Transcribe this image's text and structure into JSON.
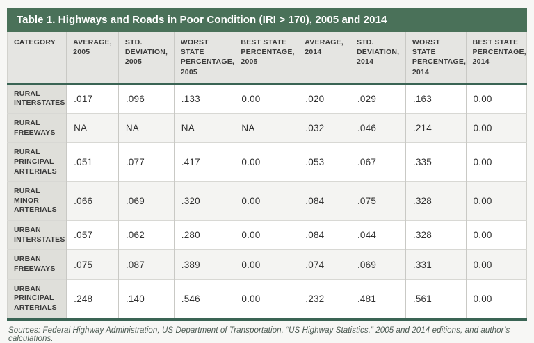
{
  "table": {
    "title": "Table 1. Highways and Roads in Poor Condition (IRI > 170), 2005 and 2014"
  },
  "chart_data": {
    "type": "table",
    "title": "Table 1. Highways and Roads in Poor Condition (IRI > 170), 2005 and 2014",
    "columns": [
      "CATEGORY",
      "AVERAGE, 2005",
      "STD. DEVIATION, 2005",
      "WORST STATE PERCENTAGE, 2005",
      "BEST STATE PERCENTAGE, 2005",
      "AVERAGE, 2014",
      "STD. DEVIATION, 2014",
      "WORST STATE PERCENTAGE, 2014",
      "BEST STATE PERCENTAGE, 2014"
    ],
    "rows": [
      {
        "category": "RURAL INTERSTATES",
        "values": [
          ".017",
          ".096",
          ".133",
          "0.00",
          ".020",
          ".029",
          ".163",
          "0.00"
        ]
      },
      {
        "category": "RURAL FREEWAYS",
        "values": [
          "NA",
          "NA",
          "NA",
          "NA",
          ".032",
          ".046",
          ".214",
          "0.00"
        ]
      },
      {
        "category": "RURAL PRINCIPAL ARTERIALS",
        "values": [
          ".051",
          ".077",
          ".417",
          "0.00",
          ".053",
          ".067",
          ".335",
          "0.00"
        ]
      },
      {
        "category": "RURAL MINOR ARTERIALS",
        "values": [
          ".066",
          ".069",
          ".320",
          "0.00",
          ".084",
          ".075",
          ".328",
          "0.00"
        ]
      },
      {
        "category": "URBAN INTERSTATES",
        "values": [
          ".057",
          ".062",
          ".280",
          "0.00",
          ".084",
          ".044",
          ".328",
          "0.00"
        ]
      },
      {
        "category": "URBAN FREEWAYS",
        "values": [
          ".075",
          ".087",
          ".389",
          "0.00",
          ".074",
          ".069",
          ".331",
          "0.00"
        ]
      },
      {
        "category": "URBAN PRINCIPAL ARTERIALS",
        "values": [
          ".248",
          ".140",
          ".546",
          "0.00",
          ".232",
          ".481",
          ".561",
          "0.00"
        ]
      }
    ]
  },
  "colors": {
    "title_bar_bg": "#4a7159",
    "accent_border": "#3a6454",
    "header_bg": "#e5e5e2",
    "category_bg": "#dfdfda",
    "stripe_bg": "#f4f4f2"
  },
  "footer": {
    "sources": "Sources: Federal Highway Administration, US Department of Transportation, “US Highway Statistics,” 2005 and 2014 editions, and author’s calculations."
  }
}
